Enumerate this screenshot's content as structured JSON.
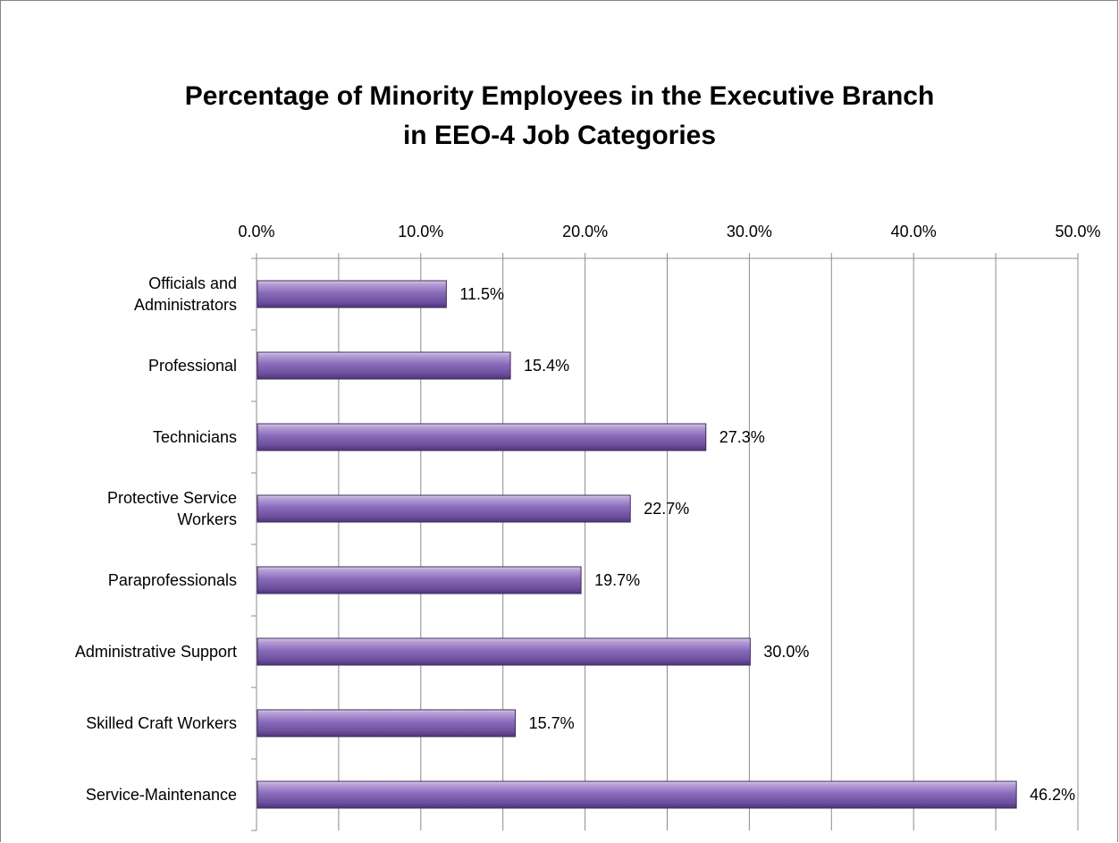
{
  "chart_data": {
    "type": "bar",
    "orientation": "horizontal",
    "title": "Percentage of Minority Employees in the Executive Branch in EEO-4 Job Categories",
    "title_lines": [
      "Percentage of Minority Employees in the Executive Branch",
      "in EEO-4 Job Categories"
    ],
    "categories": [
      [
        "Officials and",
        "Administrators"
      ],
      [
        "Professional"
      ],
      [
        "Technicians"
      ],
      [
        "Protective Service",
        "Workers"
      ],
      [
        "Paraprofessionals"
      ],
      [
        "Administrative Support"
      ],
      [
        "Skilled Craft Workers"
      ],
      [
        "Service-Maintenance"
      ]
    ],
    "values": [
      11.5,
      15.4,
      27.3,
      22.7,
      19.7,
      30.0,
      15.7,
      46.2
    ],
    "data_labels": [
      "11.5%",
      "15.4%",
      "27.3%",
      "22.7%",
      "19.7%",
      "30.0%",
      "15.7%",
      "46.2%"
    ],
    "x_ticks": [
      "0.0%",
      "10.0%",
      "20.0%",
      "30.0%",
      "40.0%",
      "50.0%"
    ],
    "xlim": [
      0,
      50
    ],
    "x_axis_position": "top",
    "grid": true,
    "bar_color": "#8064a2",
    "legend": "none"
  }
}
